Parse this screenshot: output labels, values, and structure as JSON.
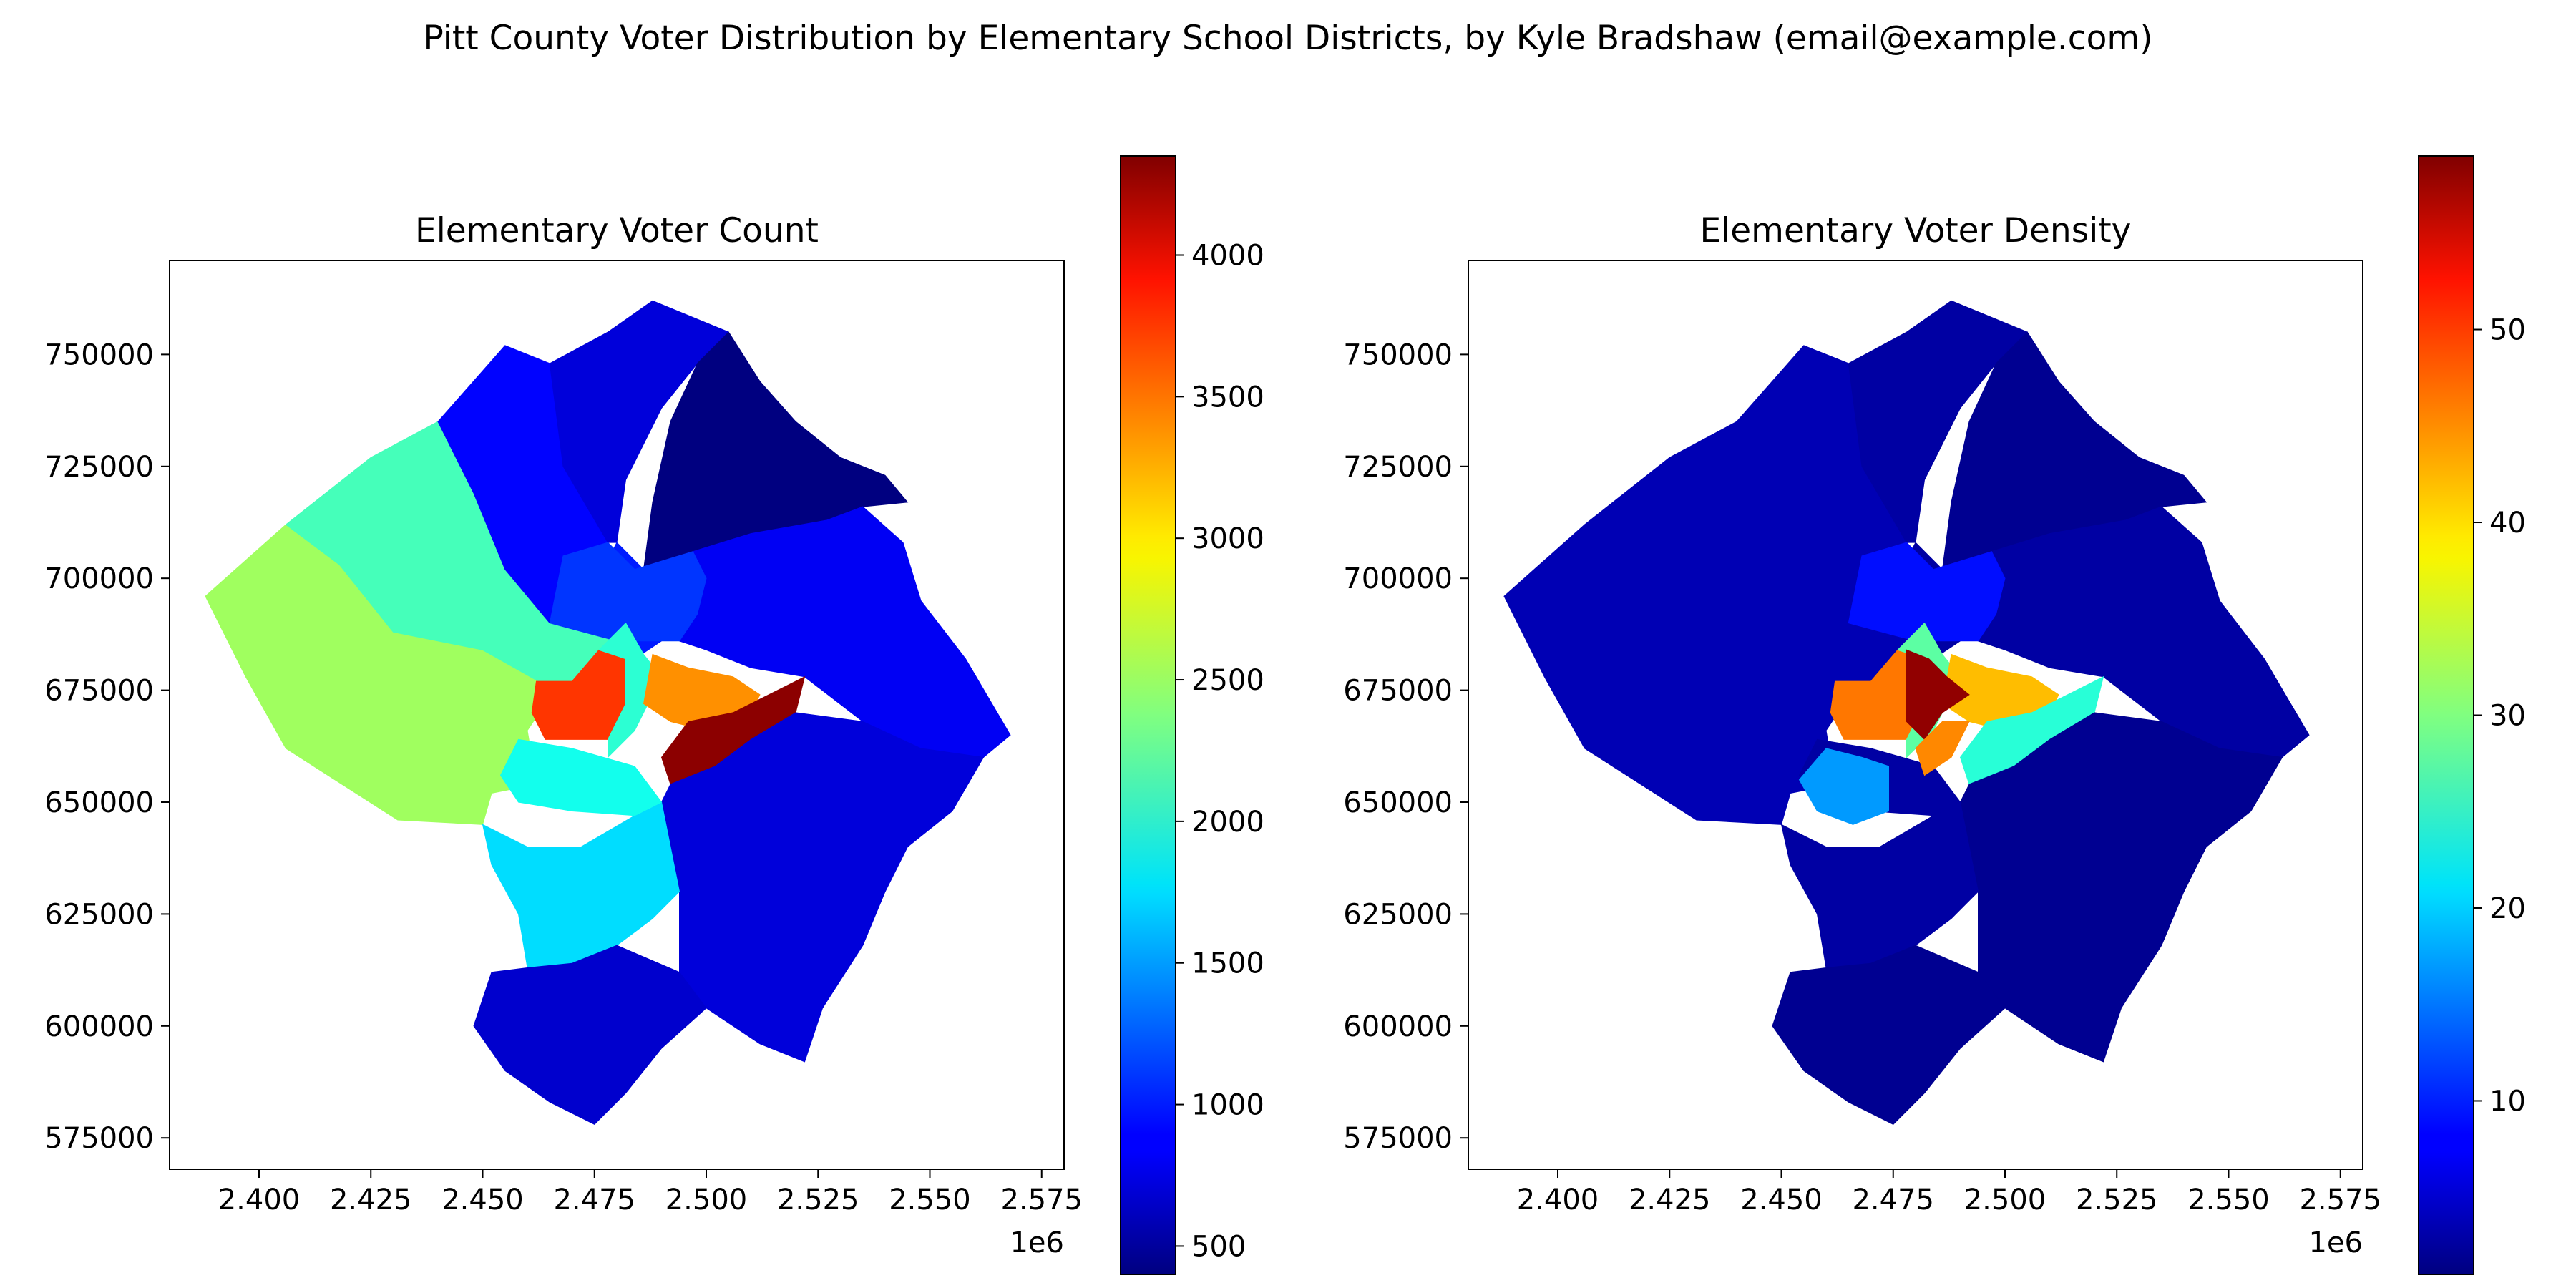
{
  "figure": {
    "title": "Pitt County Voter Distribution by Elementary School Districts, by Kyle Bradshaw (email@example.com)"
  },
  "chart_data": [
    {
      "type": "heatmap",
      "title": "Elementary Voter Count",
      "xlabel": "",
      "ylabel": "",
      "x_ticks": [
        "2.400",
        "2.425",
        "2.450",
        "2.475",
        "2.500",
        "2.525",
        "2.550",
        "2.575"
      ],
      "x_tick_values": [
        2400000,
        2425000,
        2450000,
        2475000,
        2500000,
        2525000,
        2550000,
        2575000
      ],
      "x_offset_label": "1e6",
      "y_ticks": [
        "750000",
        "725000",
        "700000",
        "675000",
        "650000",
        "625000",
        "600000",
        "575000"
      ],
      "y_tick_values": [
        750000,
        725000,
        700000,
        675000,
        650000,
        625000,
        600000,
        575000
      ],
      "xlim": [
        2380000,
        2580000
      ],
      "ylim": [
        568000,
        771000
      ],
      "colormap": "jet",
      "colorbar": {
        "ticks": [
          500,
          1000,
          1500,
          2000,
          2500,
          3000,
          3500,
          4000
        ],
        "range": [
          400,
          4350
        ]
      },
      "grid": false,
      "regions": [
        {
          "id": "far-west",
          "value": 2500
        },
        {
          "id": "west",
          "value": 2150
        },
        {
          "id": "northwest",
          "value": 900
        },
        {
          "id": "north",
          "value": 750
        },
        {
          "id": "north-center",
          "value": 1000
        },
        {
          "id": "northeast",
          "value": 400
        },
        {
          "id": "east",
          "value": 850
        },
        {
          "id": "center-north",
          "value": 1100
        },
        {
          "id": "central-west",
          "value": 3650
        },
        {
          "id": "center",
          "value": 2050
        },
        {
          "id": "center-north-east",
          "value": 3300
        },
        {
          "id": "center-east",
          "value": 4300
        },
        {
          "id": "southeast",
          "value": 750
        },
        {
          "id": "south-center",
          "value": 1750
        },
        {
          "id": "south-center-2",
          "value": 1950
        },
        {
          "id": "south",
          "value": 700
        }
      ]
    },
    {
      "type": "heatmap",
      "title": "Elementary Voter Density",
      "xlabel": "",
      "ylabel": "",
      "x_ticks": [
        "2.400",
        "2.425",
        "2.450",
        "2.475",
        "2.500",
        "2.525",
        "2.550",
        "2.575"
      ],
      "x_tick_values": [
        2400000,
        2425000,
        2450000,
        2475000,
        2500000,
        2525000,
        2550000,
        2575000
      ],
      "x_offset_label": "1e6",
      "y_ticks": [
        "750000",
        "725000",
        "700000",
        "675000",
        "650000",
        "625000",
        "600000",
        "575000"
      ],
      "y_tick_values": [
        750000,
        725000,
        700000,
        675000,
        650000,
        625000,
        600000,
        575000
      ],
      "xlim": [
        2380000,
        2580000
      ],
      "ylim": [
        568000,
        771000
      ],
      "colormap": "jet",
      "colorbar": {
        "ticks": [
          10,
          20,
          30,
          40,
          50
        ],
        "range": [
          1,
          59
        ]
      },
      "grid": false,
      "regions": [
        {
          "id": "far-west",
          "value": 4
        },
        {
          "id": "west",
          "value": 4
        },
        {
          "id": "northwest",
          "value": 4
        },
        {
          "id": "north",
          "value": 3
        },
        {
          "id": "north-center",
          "value": 3
        },
        {
          "id": "northeast",
          "value": 2
        },
        {
          "id": "east",
          "value": 3
        },
        {
          "id": "center-north",
          "value": 9
        },
        {
          "id": "central-west",
          "value": 45
        },
        {
          "id": "center",
          "value": 28
        },
        {
          "id": "center-north-east",
          "value": 41
        },
        {
          "id": "center-east",
          "value": 25
        },
        {
          "id": "southeast",
          "value": 2
        },
        {
          "id": "south-center",
          "value": 3
        },
        {
          "id": "south-center-2",
          "value": 3
        },
        {
          "id": "south",
          "value": 2
        },
        {
          "id": "core-north",
          "value": 58
        },
        {
          "id": "core-south",
          "value": 44
        },
        {
          "id": "southwest-core",
          "value": 17
        }
      ]
    }
  ]
}
